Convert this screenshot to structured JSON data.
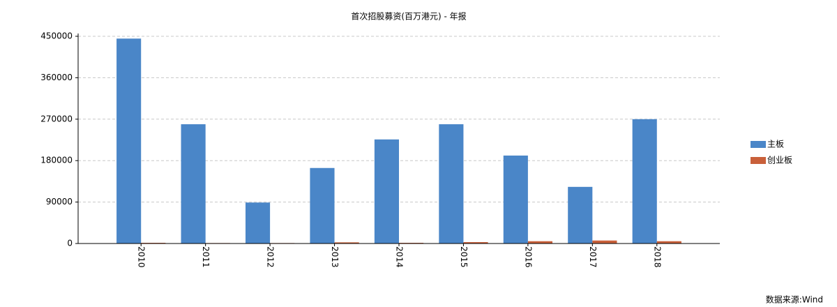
{
  "chart_data": {
    "type": "bar",
    "title": "首次招股募资(百万港元) - 年报",
    "categories": [
      "2010",
      "2011",
      "2012",
      "2013",
      "2014",
      "2015",
      "2016",
      "2017",
      "2018"
    ],
    "series": [
      {
        "name": "主板",
        "color": "#4a86c8",
        "values": [
          445000,
          259000,
          89000,
          164000,
          226000,
          259000,
          191000,
          123000,
          270000
        ]
      },
      {
        "name": "创业板",
        "color": "#c9603a",
        "values": [
          1500,
          1000,
          1000,
          2500,
          1500,
          3000,
          5000,
          6500,
          5000
        ]
      }
    ],
    "ylim": [
      0,
      450000
    ],
    "yticks": [
      0,
      90000,
      180000,
      270000,
      360000,
      450000
    ],
    "grid": true,
    "legend": "right",
    "source": "数据来源:Wind"
  }
}
